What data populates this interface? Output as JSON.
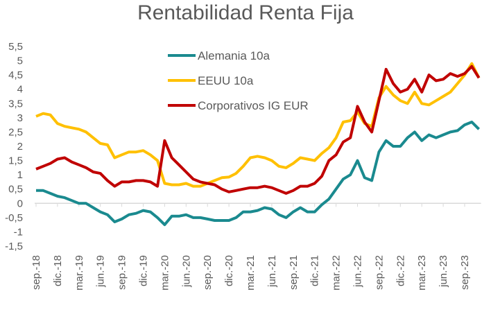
{
  "chart_data": {
    "type": "line",
    "title": "Rentabilidad Renta Fija",
    "xlabel": "",
    "ylabel": "",
    "ylim": [
      -1.5,
      5.5
    ],
    "yticks": [
      "5,5",
      "5",
      "4,5",
      "4",
      "3,5",
      "3",
      "2,5",
      "2",
      "1,5",
      "1",
      "0,5",
      "0",
      "-0,5",
      "-1",
      "-1,5"
    ],
    "ytick_values": [
      5.5,
      5,
      4.5,
      4,
      3.5,
      3,
      2.5,
      2,
      1.5,
      1,
      0.5,
      0,
      -0.5,
      -1,
      -1.5
    ],
    "xticks": [
      "sep.-18",
      "dic.-18",
      "mar.-19",
      "jun.-19",
      "sep.-19",
      "dic.-19",
      "mar.-20",
      "jun.-20",
      "sep.-20",
      "dic.-20",
      "mar.-21",
      "jun.-21",
      "sep.-21",
      "dic.-21",
      "mar.-22",
      "jun.-22",
      "sep.-22",
      "dic.-22",
      "mar.-23",
      "jun.-23",
      "sep.-23"
    ],
    "x": [
      "2018-09",
      "2018-10",
      "2018-11",
      "2018-12",
      "2019-01",
      "2019-02",
      "2019-03",
      "2019-04",
      "2019-05",
      "2019-06",
      "2019-07",
      "2019-08",
      "2019-09",
      "2019-10",
      "2019-11",
      "2019-12",
      "2020-01",
      "2020-02",
      "2020-03",
      "2020-04",
      "2020-05",
      "2020-06",
      "2020-07",
      "2020-08",
      "2020-09",
      "2020-10",
      "2020-11",
      "2020-12",
      "2021-01",
      "2021-02",
      "2021-03",
      "2021-04",
      "2021-05",
      "2021-06",
      "2021-07",
      "2021-08",
      "2021-09",
      "2021-10",
      "2021-11",
      "2021-12",
      "2022-01",
      "2022-02",
      "2022-03",
      "2022-04",
      "2022-05",
      "2022-06",
      "2022-07",
      "2022-08",
      "2022-09",
      "2022-10",
      "2022-11",
      "2022-12",
      "2023-01",
      "2023-02",
      "2023-03",
      "2023-04",
      "2023-05",
      "2023-06",
      "2023-07",
      "2023-08",
      "2023-09",
      "2023-10",
      "2023-11"
    ],
    "legend": "top-center",
    "grid": false,
    "series": [
      {
        "name": "Alemania 10a",
        "color": "#1a8a8f",
        "values": [
          0.45,
          0.45,
          0.35,
          0.25,
          0.2,
          0.1,
          0.0,
          0.0,
          -0.15,
          -0.3,
          -0.4,
          -0.65,
          -0.55,
          -0.4,
          -0.35,
          -0.25,
          -0.3,
          -0.5,
          -0.75,
          -0.45,
          -0.45,
          -0.4,
          -0.5,
          -0.5,
          -0.55,
          -0.6,
          -0.6,
          -0.6,
          -0.5,
          -0.3,
          -0.3,
          -0.25,
          -0.15,
          -0.2,
          -0.4,
          -0.5,
          -0.3,
          -0.15,
          -0.3,
          -0.3,
          -0.05,
          0.15,
          0.5,
          0.85,
          1.0,
          1.5,
          0.9,
          0.8,
          1.8,
          2.2,
          2.0,
          2.0,
          2.3,
          2.5,
          2.2,
          2.4,
          2.3,
          2.4,
          2.5,
          2.55,
          2.75,
          2.85,
          2.6
        ]
      },
      {
        "name": "EEUU 10a",
        "color": "#ffc000",
        "values": [
          3.05,
          3.15,
          3.1,
          2.8,
          2.7,
          2.65,
          2.6,
          2.5,
          2.3,
          2.1,
          2.05,
          1.6,
          1.7,
          1.8,
          1.8,
          1.85,
          1.7,
          1.5,
          0.7,
          0.65,
          0.65,
          0.7,
          0.6,
          0.6,
          0.7,
          0.8,
          0.9,
          0.92,
          1.05,
          1.3,
          1.6,
          1.65,
          1.6,
          1.5,
          1.3,
          1.25,
          1.4,
          1.6,
          1.55,
          1.5,
          1.75,
          1.95,
          2.3,
          2.85,
          2.9,
          3.2,
          2.8,
          2.7,
          3.7,
          4.1,
          3.8,
          3.6,
          3.5,
          3.9,
          3.5,
          3.45,
          3.6,
          3.75,
          3.9,
          4.2,
          4.5,
          4.9,
          4.4
        ]
      },
      {
        "name": "Corporativos IG EUR",
        "color": "#c00000",
        "values": [
          1.2,
          1.3,
          1.4,
          1.55,
          1.6,
          1.45,
          1.35,
          1.25,
          1.1,
          1.05,
          0.8,
          0.6,
          0.75,
          0.75,
          0.8,
          0.8,
          0.75,
          0.6,
          2.2,
          1.6,
          1.35,
          1.1,
          0.85,
          0.75,
          0.7,
          0.65,
          0.5,
          0.4,
          0.45,
          0.5,
          0.55,
          0.55,
          0.6,
          0.55,
          0.45,
          0.35,
          0.45,
          0.6,
          0.6,
          0.7,
          0.95,
          1.5,
          1.7,
          2.15,
          2.3,
          3.4,
          2.85,
          2.5,
          3.6,
          4.7,
          4.2,
          3.9,
          4.0,
          4.35,
          3.9,
          4.5,
          4.3,
          4.35,
          4.55,
          4.45,
          4.55,
          4.8,
          4.4
        ]
      }
    ]
  }
}
